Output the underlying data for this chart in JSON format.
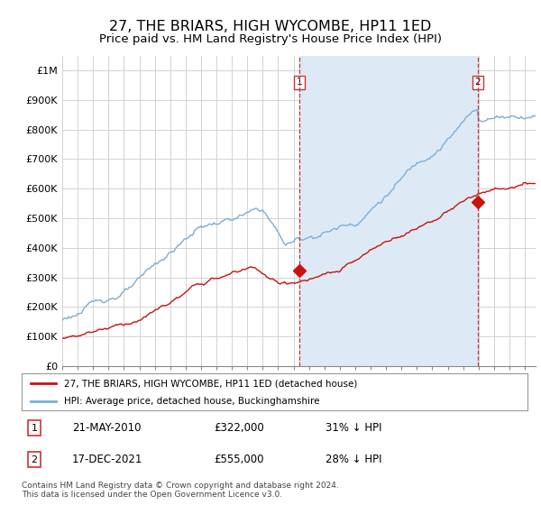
{
  "title": "27, THE BRIARS, HIGH WYCOMBE, HP11 1ED",
  "subtitle": "Price paid vs. HM Land Registry's House Price Index (HPI)",
  "title_fontsize": 11.5,
  "subtitle_fontsize": 9.5,
  "ylabel_ticks": [
    "£0",
    "£100K",
    "£200K",
    "£300K",
    "£400K",
    "£500K",
    "£600K",
    "£700K",
    "£800K",
    "£900K",
    "£1M"
  ],
  "ytick_values": [
    0,
    100000,
    200000,
    300000,
    400000,
    500000,
    600000,
    700000,
    800000,
    900000,
    1000000
  ],
  "ylim": [
    0,
    1050000
  ],
  "xlim_start": 1995.0,
  "xlim_end": 2025.7,
  "hpi_color": "#7dadd4",
  "hpi_fill_color": "#ddeaf5",
  "price_color": "#cc1111",
  "dashed_color": "#cc3333",
  "marker1_x": 2010.38,
  "marker1_y": 322000,
  "marker2_x": 2021.96,
  "marker2_y": 555000,
  "legend_entry1": "27, THE BRIARS, HIGH WYCOMBE, HP11 1ED (detached house)",
  "legend_entry2": "HPI: Average price, detached house, Buckinghamshire",
  "table_row1_num": "1",
  "table_row1_date": "21-MAY-2010",
  "table_row1_price": "£322,000",
  "table_row1_hpi": "31% ↓ HPI",
  "table_row2_num": "2",
  "table_row2_date": "17-DEC-2021",
  "table_row2_price": "£555,000",
  "table_row2_hpi": "28% ↓ HPI",
  "footnote": "Contains HM Land Registry data © Crown copyright and database right 2024.\nThis data is licensed under the Open Government Licence v3.0.",
  "background_color": "#ffffff",
  "grid_color": "#cccccc"
}
